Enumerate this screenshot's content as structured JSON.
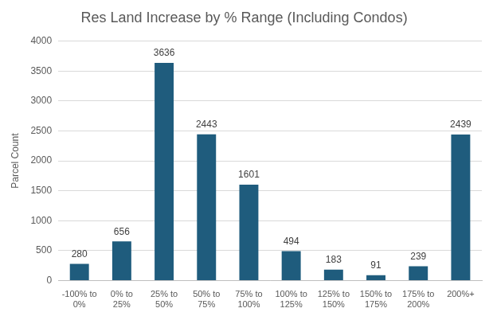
{
  "chart_data": {
    "type": "bar",
    "title": "Res Land Increase by % Range (Including Condos)",
    "y_label": "Parcel Count",
    "categories": [
      "-100% to 0%",
      "0% to 25%",
      "25% to 50%",
      "50% to 75%",
      "75% to 100%",
      "100% to 125%",
      "125% to 150%",
      "150% to 175%",
      "175% to 200%",
      "200%+"
    ],
    "values": [
      280,
      656,
      3636,
      2443,
      1601,
      494,
      183,
      91,
      239,
      2439
    ],
    "color": "#1f5c7d",
    "ylim": [
      0,
      4000
    ],
    "yticks": [
      0,
      500,
      1000,
      1500,
      2000,
      2500,
      3000,
      3500,
      4000
    ],
    "grid": true,
    "data_labels": true
  }
}
